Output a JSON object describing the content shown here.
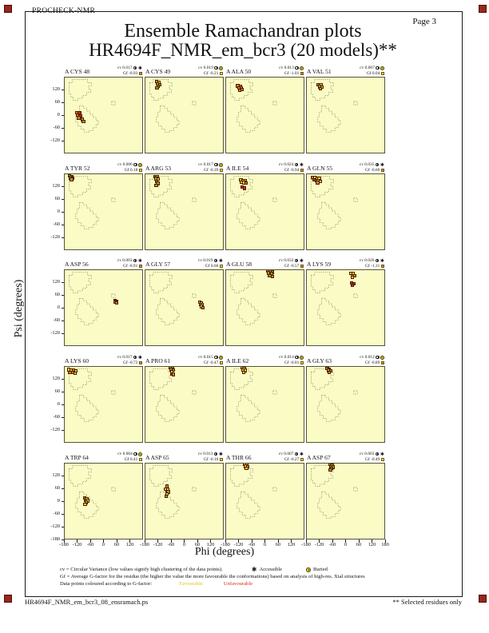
{
  "page": {
    "app_name": "PROCHECK-NMR",
    "page_label": "Page  3",
    "title": "Ensemble Ramachandran plots",
    "subtitle": "HR4694F_NMR_em_bcr3 (20 models)**",
    "xlabel": "Phi (degrees)",
    "ylabel": "Psi (degrees)",
    "footer_left": "HR4694F_NMR_em_bcr3_08_ensramach.ps",
    "footer_right": "** Selected residues only"
  },
  "legend": {
    "line1": "cv = Circular Variance (low values signify high clustering of the data points).",
    "accessible_label": "Accessible",
    "buried_label": "Buried",
    "line2": "Gf = Average G-factor for the residue (the higher the value the more favourable the conformations) based on analysis of high-res. Xtal structures",
    "line3": "Data points coloured according to G-factor:",
    "favourable_label": "Favourable",
    "unfavourable_label": "Unfavourable"
  },
  "icons": {
    "accessible_glyph": "✱"
  },
  "colors": {
    "plot_bg": "#FBFBC6",
    "favourable_text": "#ddc818",
    "unfavourable_text": "#e02818",
    "corner_mark": "#96281a"
  },
  "chart_data": {
    "type": "scatter",
    "title": "Ensemble Ramachandran plots",
    "subtitle": "HR4694F_NMR_em_bcr3 (20 models)**",
    "xlabel": "Phi (degrees)",
    "ylabel": "Psi (degrees)",
    "grid": {
      "cols": 4,
      "rows": 5
    },
    "axis": {
      "phi_range": [
        -180,
        180
      ],
      "psi_range": [
        -180,
        180
      ],
      "x_tick_values": [
        -180,
        -120,
        -60,
        0,
        60,
        120
      ],
      "x_right_tick": 180,
      "y_tick_values": [
        120,
        60,
        0,
        -60,
        -120
      ],
      "y_bottom_tick": -180
    },
    "cv_prefix": "cv",
    "gf_prefix": "Gf",
    "point_colors": {
      "y": "#e2cf2c",
      "g": "#9fa015",
      "o": "#c8821e",
      "r": "#c22b1a"
    },
    "gf_colors": {
      "yellow": "#e8dc3c",
      "orange": "#d88a20"
    },
    "plots": [
      {
        "residue": "A CYS 48",
        "cv": "0.017",
        "gf": "-0.93",
        "exposure": "accessible",
        "gf_color": "orange",
        "points": [
          [
            -124,
            16,
            "o"
          ],
          [
            -113,
            13,
            "r"
          ],
          [
            -120,
            3,
            "o"
          ],
          [
            -109,
            0,
            "r"
          ],
          [
            -116,
            -9,
            "o"
          ],
          [
            -101,
            -17,
            "g"
          ],
          [
            -95,
            -25,
            "g"
          ]
        ]
      },
      {
        "residue": "A CYS 49",
        "cv": "0.019",
        "gf": "-0.21",
        "exposure": "buried",
        "gf_color": "yellow",
        "points": [
          [
            -129,
            161,
            "g"
          ],
          [
            -119,
            158,
            "y"
          ],
          [
            -125,
            149,
            "g"
          ],
          [
            -114,
            147,
            "g"
          ],
          [
            -121,
            139,
            "g"
          ],
          [
            -127,
            131,
            "g"
          ]
        ]
      },
      {
        "residue": "A ALA 50",
        "cv": "0.013",
        "gf": "-1.01",
        "exposure": "buried",
        "gf_color": "orange",
        "points": [
          [
            -127,
            141,
            "o"
          ],
          [
            -115,
            139,
            "o"
          ],
          [
            -123,
            131,
            "o"
          ],
          [
            -110,
            129,
            "o"
          ],
          [
            -119,
            121,
            "o"
          ],
          [
            -106,
            123,
            "o"
          ]
        ]
      },
      {
        "residue": "A VAL 51",
        "cv": "0.007",
        "gf": "0.04",
        "exposure": "buried",
        "gf_color": "yellow",
        "points": [
          [
            -127,
            147,
            "g"
          ],
          [
            -116,
            145,
            "y"
          ],
          [
            -123,
            137,
            "g"
          ],
          [
            -112,
            135,
            "y"
          ],
          [
            -119,
            128,
            "g"
          ]
        ]
      },
      {
        "residue": "A TYR 52",
        "cv": "0.006",
        "gf": "0.18",
        "exposure": "buried",
        "gf_color": "yellow",
        "points": [
          [
            -157,
            172,
            "g"
          ],
          [
            -147,
            170,
            "y"
          ],
          [
            -153,
            163,
            "g"
          ],
          [
            -143,
            162,
            "g"
          ],
          [
            -149,
            156,
            "g"
          ]
        ]
      },
      {
        "residue": "A ARG 53",
        "cv": "0.017",
        "gf": "-0.39",
        "exposure": "buried",
        "gf_color": "yellow",
        "points": [
          [
            -137,
            169,
            "g"
          ],
          [
            -127,
            167,
            "g"
          ],
          [
            -131,
            159,
            "g"
          ],
          [
            -122,
            157,
            "y"
          ],
          [
            -128,
            147,
            "g"
          ],
          [
            -124,
            137,
            "g"
          ],
          [
            -131,
            128,
            "g"
          ]
        ]
      },
      {
        "residue": "A ILE 54",
        "cv": "0.024",
        "gf": "-0.94",
        "exposure": "accessible",
        "gf_color": "orange",
        "points": [
          [
            -113,
            153,
            "y"
          ],
          [
            -102,
            151,
            "y"
          ],
          [
            -94,
            149,
            "y"
          ],
          [
            -109,
            143,
            "y"
          ],
          [
            -98,
            141,
            "y"
          ],
          [
            -90,
            139,
            "o"
          ],
          [
            -108,
            119,
            "r"
          ],
          [
            -96,
            114,
            "r"
          ]
        ]
      },
      {
        "residue": "A GLN 55",
        "cv": "0.035",
        "gf": "-0.60",
        "exposure": "accessible",
        "gf_color": "orange",
        "points": [
          [
            -153,
            165,
            "o"
          ],
          [
            -143,
            163,
            "y"
          ],
          [
            -133,
            161,
            "y"
          ],
          [
            -124,
            159,
            "y"
          ],
          [
            -147,
            153,
            "r"
          ],
          [
            -137,
            151,
            "o"
          ],
          [
            -127,
            149,
            "y"
          ],
          [
            -118,
            147,
            "y"
          ],
          [
            -131,
            141,
            "o"
          ]
        ]
      },
      {
        "residue": "A ASP 56",
        "cv": "0.003",
        "gf": "-0.91",
        "exposure": "accessible",
        "gf_color": "orange",
        "points": [
          [
            49,
            37,
            "o"
          ],
          [
            55,
            35,
            "o"
          ],
          [
            51,
            29,
            "o"
          ],
          [
            57,
            27,
            "o"
          ]
        ]
      },
      {
        "residue": "A GLY 57",
        "cv": "0.019",
        "gf": "0.60",
        "exposure": "accessible",
        "gf_color": "yellow",
        "points": [
          [
            67,
            29,
            "y"
          ],
          [
            75,
            27,
            "y"
          ],
          [
            71,
            19,
            "y"
          ],
          [
            79,
            17,
            "y"
          ],
          [
            75,
            9,
            "y"
          ],
          [
            83,
            5,
            "g"
          ]
        ]
      },
      {
        "residue": "A GLU 58",
        "cv": "0.032",
        "gf": "-0.57",
        "exposure": "accessible",
        "gf_color": "orange",
        "points": [
          [
            10,
            176,
            "o"
          ],
          [
            22,
            174,
            "o"
          ],
          [
            32,
            171,
            "g"
          ],
          [
            14,
            167,
            "g"
          ],
          [
            26,
            163,
            "g"
          ],
          [
            18,
            155,
            "g"
          ],
          [
            30,
            151,
            "g"
          ]
        ]
      },
      {
        "residue": "A LYS 59",
        "cv": "0.026",
        "gf": "-1.31",
        "exposure": "accessible",
        "gf_color": "orange",
        "points": [
          [
            22,
            165,
            "y"
          ],
          [
            32,
            163,
            "y"
          ],
          [
            26,
            155,
            "y"
          ],
          [
            36,
            153,
            "g"
          ],
          [
            28,
            145,
            "y"
          ],
          [
            24,
            119,
            "r"
          ],
          [
            34,
            115,
            "r"
          ],
          [
            28,
            109,
            "r"
          ]
        ]
      },
      {
        "residue": "A LYS 60",
        "cv": "0.017",
        "gf": "-0.72",
        "exposure": "accessible",
        "gf_color": "orange",
        "points": [
          [
            -162,
            167,
            "y"
          ],
          [
            -150,
            165,
            "y"
          ],
          [
            -139,
            163,
            "o"
          ],
          [
            -128,
            161,
            "y"
          ],
          [
            -156,
            155,
            "o"
          ],
          [
            -144,
            153,
            "o"
          ],
          [
            -133,
            151,
            "y"
          ]
        ]
      },
      {
        "residue": "A PRO 61",
        "cv": "0.015",
        "gf": "-0.47",
        "exposure": "buried",
        "gf_color": "yellow",
        "points": [
          [
            -66,
            176,
            "g"
          ],
          [
            -57,
            174,
            "g"
          ],
          [
            -62,
            167,
            "g"
          ],
          [
            -53,
            165,
            "g"
          ],
          [
            -59,
            157,
            "y"
          ],
          [
            -61,
            146,
            "r"
          ],
          [
            -53,
            144,
            "o"
          ]
        ]
      },
      {
        "residue": "A ILE 62",
        "cv": "0.014",
        "gf": "-0.01",
        "exposure": "buried",
        "gf_color": "yellow",
        "points": [
          [
            -108,
            175,
            "y"
          ],
          [
            -98,
            173,
            "y"
          ],
          [
            -104,
            165,
            "y"
          ],
          [
            -94,
            163,
            "y"
          ],
          [
            -100,
            155,
            "y"
          ]
        ]
      },
      {
        "residue": "A GLY 63",
        "cv": "0.012",
        "gf": "-0.89",
        "exposure": "buried",
        "gf_color": "orange",
        "points": [
          [
            -87,
            172,
            "o"
          ],
          [
            -77,
            170,
            "o"
          ],
          [
            -83,
            163,
            "g"
          ],
          [
            -72,
            161,
            "o"
          ],
          [
            -79,
            153,
            "g"
          ]
        ]
      },
      {
        "residue": "A TRP 64",
        "cv": "0.004",
        "gf": "0.41",
        "exposure": "buried",
        "gf_color": "yellow",
        "points": [
          [
            -89,
            18,
            "g"
          ],
          [
            -80,
            16,
            "y"
          ],
          [
            -85,
            8,
            "g"
          ],
          [
            -76,
            6,
            "y"
          ],
          [
            -82,
            -2,
            "g"
          ],
          [
            -87,
            -10,
            "y"
          ]
        ]
      },
      {
        "residue": "A ASP 65",
        "cv": "0.013",
        "gf": "-0.10",
        "exposure": "accessible",
        "gf_color": "yellow",
        "points": [
          [
            -82,
            73,
            "o"
          ],
          [
            -87,
            61,
            "y"
          ],
          [
            -78,
            59,
            "y"
          ],
          [
            -83,
            49,
            "y"
          ],
          [
            -76,
            47,
            "g"
          ],
          [
            -81,
            37,
            "y"
          ],
          [
            -85,
            27,
            "g"
          ]
        ]
      },
      {
        "residue": "A THR 66",
        "cv": "0.007",
        "gf": "-0.27",
        "exposure": "accessible",
        "gf_color": "yellow",
        "points": [
          [
            -95,
            176,
            "y"
          ],
          [
            -85,
            174,
            "y"
          ],
          [
            -91,
            167,
            "y"
          ],
          [
            -81,
            165,
            "y"
          ],
          [
            -87,
            158,
            "y"
          ]
        ]
      },
      {
        "residue": "A ASP 67",
        "cv": "0.003",
        "gf": "-0.49",
        "exposure": "accessible",
        "gf_color": "yellow",
        "points": [
          [
            -75,
            175,
            "g"
          ],
          [
            -65,
            173,
            "g"
          ],
          [
            -71,
            165,
            "g"
          ],
          [
            -61,
            163,
            "g"
          ],
          [
            -67,
            157,
            "o"
          ],
          [
            -73,
            151,
            "g"
          ]
        ]
      }
    ]
  }
}
